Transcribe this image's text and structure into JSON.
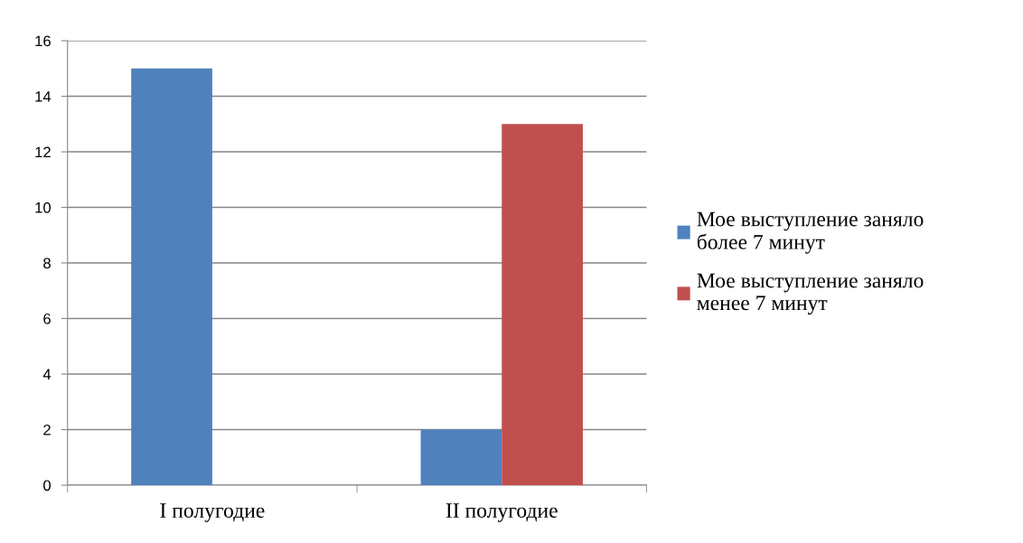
{
  "chart_data": {
    "type": "bar",
    "categories": [
      "I полугодие",
      "II полугодие"
    ],
    "series": [
      {
        "name": "Мое выступление заняло более 7 минут",
        "color": "#4f81bd",
        "values": [
          15,
          2
        ]
      },
      {
        "name": "Мое выступление заняло менее 7 минут",
        "color": "#c0504d",
        "values": [
          null,
          13
        ]
      }
    ],
    "ylim": [
      0,
      16
    ],
    "yticks": [
      0,
      2,
      4,
      6,
      8,
      10,
      12,
      14,
      16
    ],
    "grid": "y",
    "legend": "right"
  }
}
